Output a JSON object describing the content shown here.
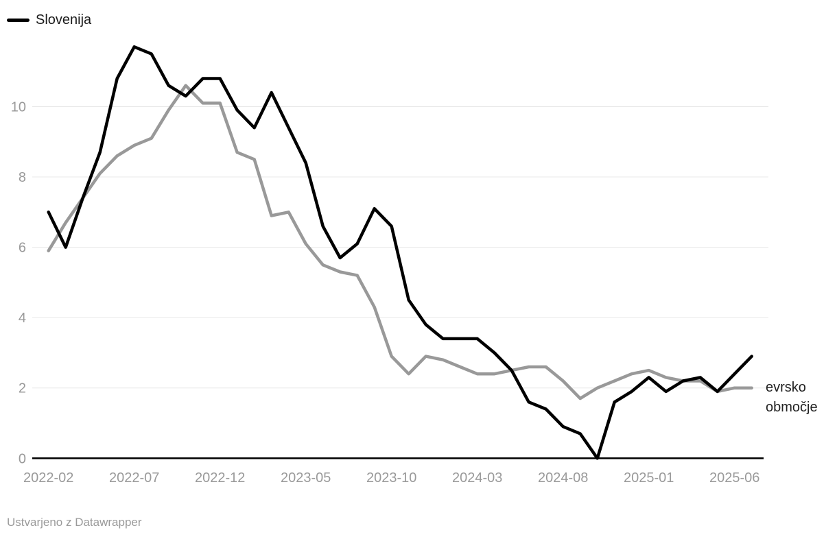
{
  "legend": {
    "items": [
      {
        "label": "Slovenija",
        "color": "#000000"
      }
    ]
  },
  "right_label": {
    "lines": [
      "evrsko",
      "območje"
    ],
    "color": "#222222"
  },
  "footer": {
    "credit": "Ustvarjeno z Datawrapper"
  },
  "axes": {
    "y_ticks": [
      0,
      2,
      4,
      6,
      8,
      10
    ],
    "x_tick_labels": [
      "2022-02",
      "2022-07",
      "2022-12",
      "2023-05",
      "2023-10",
      "2024-03",
      "2024-08",
      "2025-01",
      "2025-06"
    ],
    "x_tick_indices": [
      0,
      5,
      10,
      15,
      20,
      25,
      30,
      35,
      40
    ],
    "tick_label_color": "#9a9a9a",
    "grid_color": "#e8e8e8",
    "axis_color": "#000000"
  },
  "chart_data": {
    "type": "line",
    "title": "",
    "xlabel": "",
    "ylabel": "",
    "ylim": [
      0,
      12
    ],
    "grid": "horizontal",
    "legend_position": "top-left",
    "x": [
      "2022-02",
      "2022-03",
      "2022-04",
      "2022-05",
      "2022-06",
      "2022-07",
      "2022-08",
      "2022-09",
      "2022-10",
      "2022-11",
      "2022-12",
      "2023-01",
      "2023-02",
      "2023-03",
      "2023-04",
      "2023-05",
      "2023-06",
      "2023-07",
      "2023-08",
      "2023-09",
      "2023-10",
      "2023-11",
      "2023-12",
      "2024-01",
      "2024-02",
      "2024-03",
      "2024-04",
      "2024-05",
      "2024-06",
      "2024-07",
      "2024-08",
      "2024-09",
      "2024-10",
      "2024-11",
      "2024-12",
      "2025-01",
      "2025-02",
      "2025-03",
      "2025-04",
      "2025-05",
      "2025-06",
      "2025-07"
    ],
    "series": [
      {
        "name": "Slovenija",
        "color": "#000000",
        "stroke_width": 4.5,
        "values": [
          7.0,
          6.0,
          7.4,
          8.7,
          10.8,
          11.7,
          11.5,
          10.6,
          10.3,
          10.8,
          10.8,
          9.9,
          9.4,
          10.4,
          9.4,
          8.4,
          6.6,
          5.7,
          6.1,
          7.1,
          6.6,
          4.5,
          3.8,
          3.4,
          3.4,
          3.4,
          3.0,
          2.5,
          1.6,
          1.4,
          0.9,
          0.7,
          0.0,
          1.6,
          1.9,
          2.3,
          1.9,
          2.2,
          2.3,
          1.9,
          2.4,
          2.9
        ]
      },
      {
        "name": "evrsko območje",
        "color": "#999999",
        "stroke_width": 4.5,
        "values": [
          5.9,
          6.7,
          7.4,
          8.1,
          8.6,
          8.9,
          9.1,
          9.9,
          10.6,
          10.1,
          10.1,
          8.7,
          8.5,
          6.9,
          7.0,
          6.1,
          5.5,
          5.3,
          5.2,
          4.3,
          2.9,
          2.4,
          2.9,
          2.8,
          2.6,
          2.4,
          2.4,
          2.5,
          2.6,
          2.6,
          2.2,
          1.7,
          2.0,
          2.2,
          2.4,
          2.5,
          2.3,
          2.2,
          2.2,
          1.9,
          2.0,
          2.0
        ]
      }
    ]
  }
}
